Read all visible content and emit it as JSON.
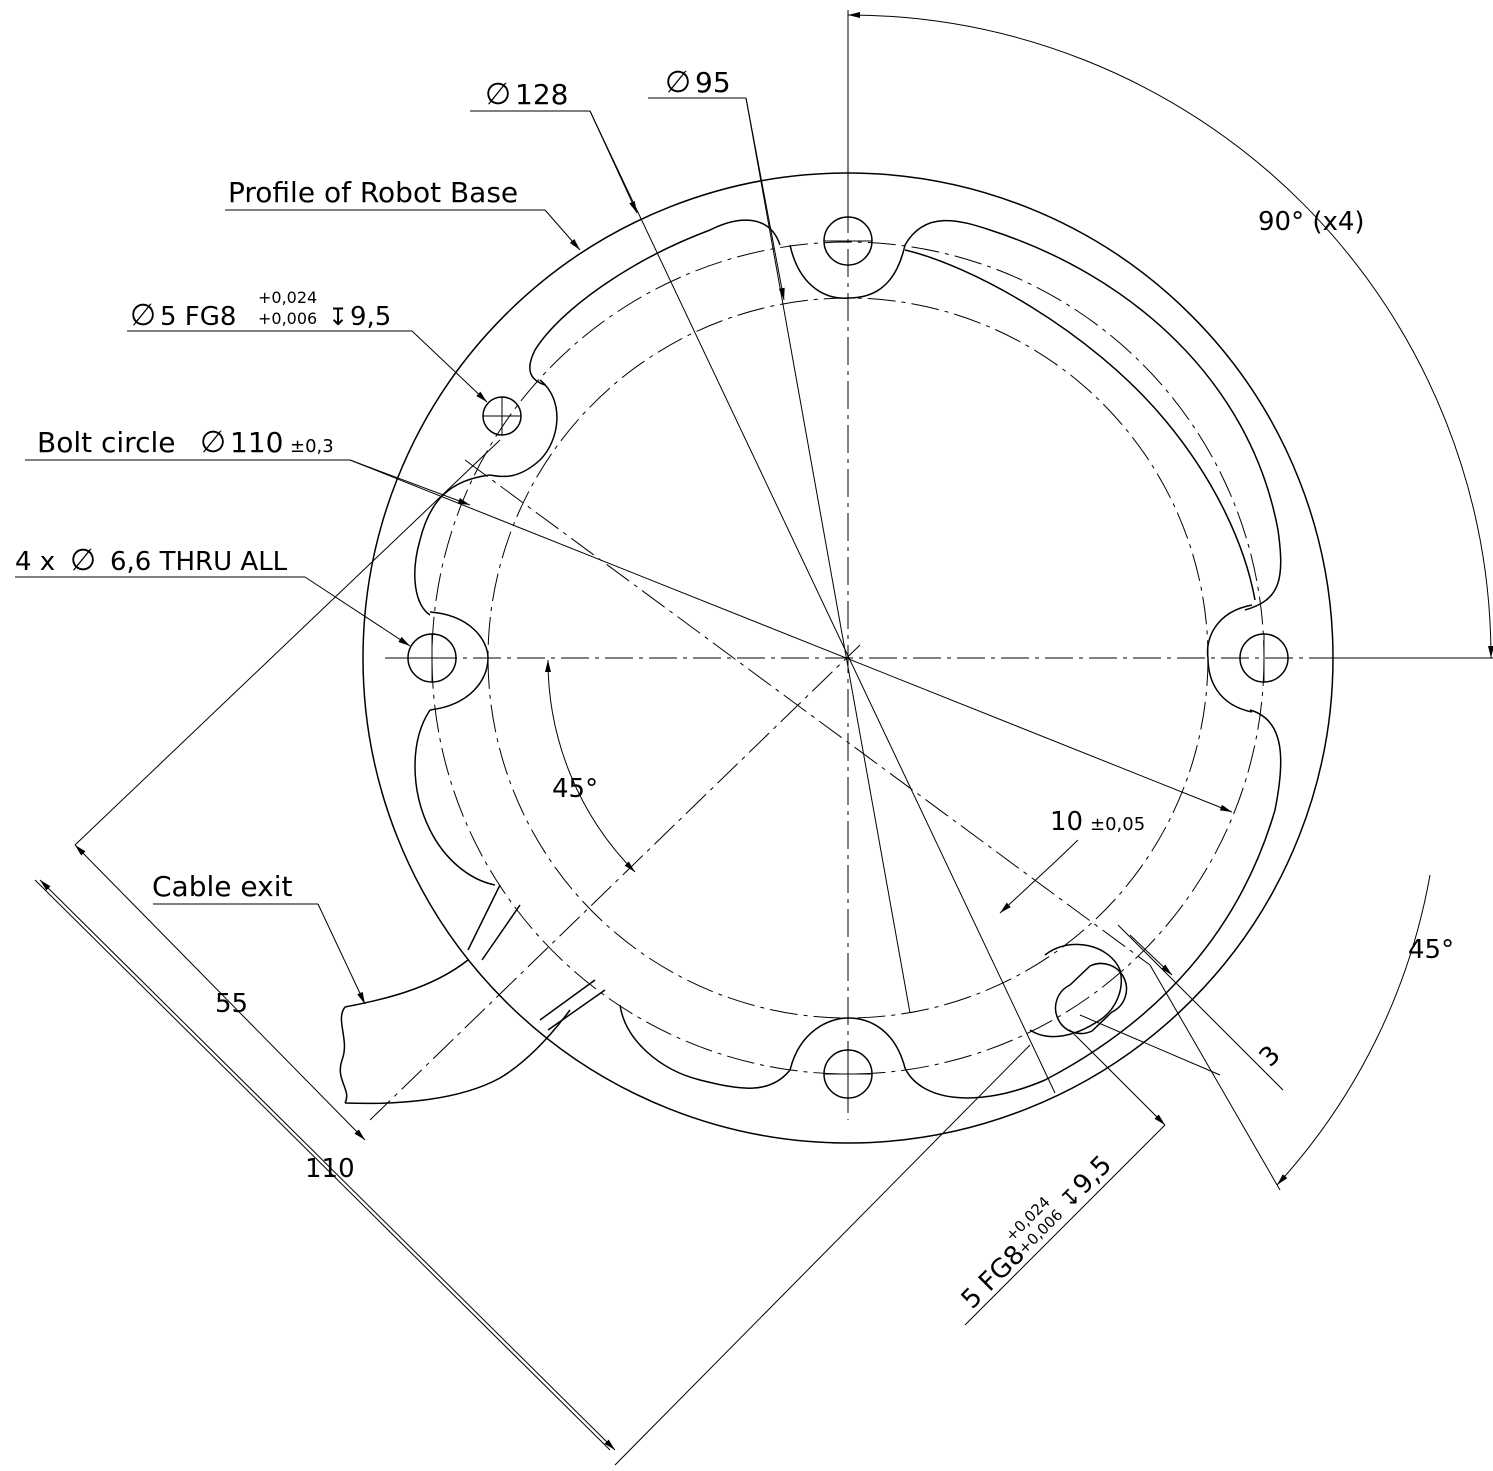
{
  "labels": {
    "d128": "128",
    "d95": "95",
    "profile": "Profile of Robot Base",
    "pin_hole": "5 FG8",
    "pin_tol_upper": "+0,024",
    "pin_tol_lower": "+0,006",
    "pin_depth": "9,5",
    "bolt_circle": "Bolt circle",
    "bolt_circle_value": "110",
    "bolt_circle_tol": "±0,3",
    "thru_holes": "4 x",
    "thru_holes_value": "6,6 THRU ALL",
    "angle_90": "90° (x4)",
    "angle_45_left": "45°",
    "angle_45_right": "45°",
    "dim_10": "10",
    "dim_10_tol": "±0,05",
    "cable_exit": "Cable exit",
    "dim_55": "55",
    "dim_110": "110",
    "dim_3": "3",
    "slot_label": "5 FG8",
    "slot_tol_upper": "+0,024",
    "slot_tol_lower": "+0,006",
    "slot_depth": "9,5"
  },
  "symbols": {
    "diameter": "∅",
    "depth": "↧"
  },
  "colors": {
    "line": "#000000",
    "background": "#ffffff"
  }
}
